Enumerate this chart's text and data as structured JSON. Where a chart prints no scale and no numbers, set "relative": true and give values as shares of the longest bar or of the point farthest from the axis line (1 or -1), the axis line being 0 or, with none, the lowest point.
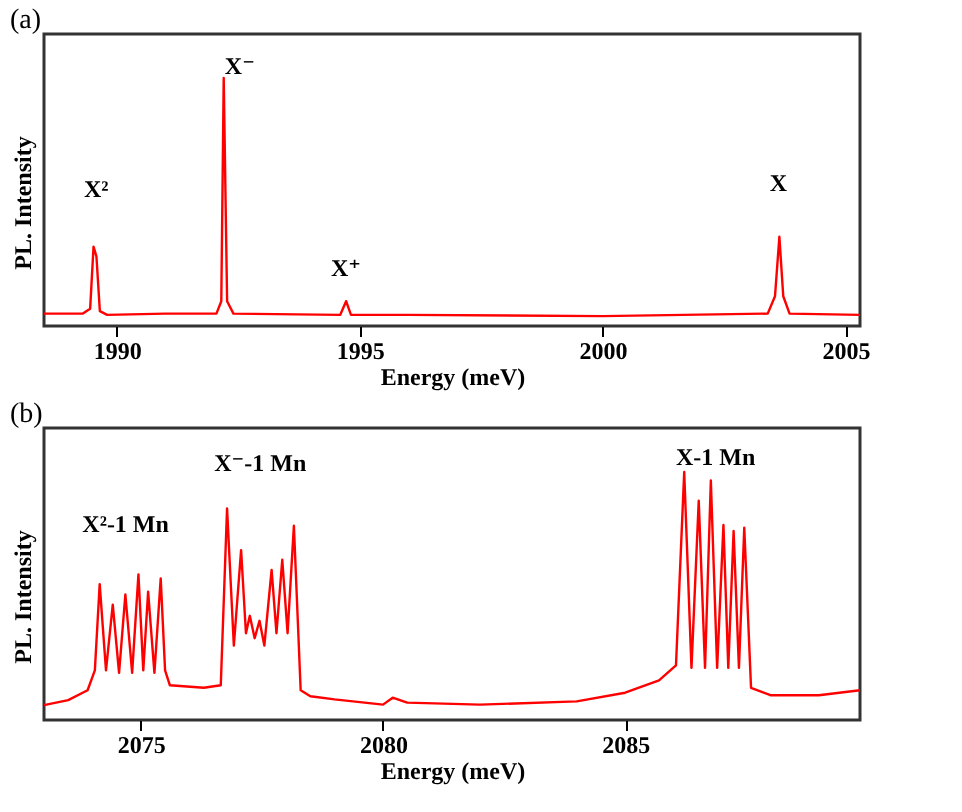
{
  "chart_data": [
    {
      "type": "line",
      "title": "(a)",
      "xlabel": "Energy (meV)",
      "ylabel": "PL. Intensity",
      "relative": true,
      "xlim": [
        1988.5,
        2005.3
      ],
      "xticks": [
        1990,
        1995,
        2000,
        2005
      ],
      "grid": false,
      "annotations": [
        "X²",
        "X⁻",
        "X⁺",
        "X"
      ],
      "series": [
        {
          "color": "#ff0000",
          "x": [
            1988.5,
            1989.3,
            1989.45,
            1989.52,
            1989.58,
            1989.65,
            1989.8,
            1991,
            1992.05,
            1992.15,
            1992.2,
            1992.27,
            1992.4,
            1994.6,
            1994.72,
            1994.82,
            1996,
            2000,
            2003.4,
            2003.55,
            2003.64,
            2003.72,
            2003.85,
            2005.3
          ],
          "values": [
            0.05,
            0.05,
            0.07,
            0.32,
            0.28,
            0.06,
            0.045,
            0.05,
            0.05,
            0.1,
            1.0,
            0.1,
            0.05,
            0.045,
            0.1,
            0.045,
            0.045,
            0.04,
            0.05,
            0.12,
            0.36,
            0.12,
            0.05,
            0.045
          ]
        }
      ]
    },
    {
      "type": "line",
      "title": "(b)",
      "xlabel": "Energy (meV)",
      "ylabel": "PL. Intensity",
      "relative": true,
      "xlim": [
        2073,
        2089.85
      ],
      "xticks": [
        2075,
        2080,
        2085
      ],
      "grid": false,
      "annotations": [
        "X²-1 Mn",
        "X⁻-1 Mn",
        "X-1 Mn"
      ],
      "series": [
        {
          "color": "#ff0000",
          "x": [
            2073,
            2073.5,
            2073.9,
            2074.05,
            2074.15,
            2074.28,
            2074.42,
            2074.55,
            2074.68,
            2074.82,
            2074.95,
            2075.05,
            2075.15,
            2075.28,
            2075.41,
            2075.5,
            2075.6,
            2076.3,
            2076.65,
            2076.78,
            2076.92,
            2077.07,
            2077.17,
            2077.25,
            2077.35,
            2077.45,
            2077.55,
            2077.7,
            2077.8,
            2077.92,
            2078.03,
            2078.16,
            2078.3,
            2078.5,
            2079,
            2080,
            2080.2,
            2080.5,
            2082,
            2084,
            2085,
            2085.7,
            2086.05,
            2086.22,
            2086.37,
            2086.52,
            2086.65,
            2086.77,
            2086.9,
            2087.03,
            2087.13,
            2087.24,
            2087.35,
            2087.46,
            2087.6,
            2088,
            2089,
            2089.85
          ],
          "values": [
            0.06,
            0.08,
            0.12,
            0.2,
            0.548,
            0.2,
            0.465,
            0.19,
            0.506,
            0.19,
            0.587,
            0.2,
            0.517,
            0.19,
            0.571,
            0.2,
            0.14,
            0.13,
            0.14,
            0.853,
            0.3,
            0.685,
            0.35,
            0.42,
            0.33,
            0.4,
            0.3,
            0.605,
            0.35,
            0.646,
            0.35,
            0.783,
            0.12,
            0.096,
            0.083,
            0.062,
            0.09,
            0.07,
            0.062,
            0.075,
            0.11,
            0.16,
            0.22,
            1.0,
            0.21,
            0.884,
            0.21,
            0.966,
            0.21,
            0.786,
            0.21,
            0.762,
            0.21,
            0.775,
            0.13,
            0.1,
            0.1,
            0.12
          ]
        }
      ]
    }
  ]
}
